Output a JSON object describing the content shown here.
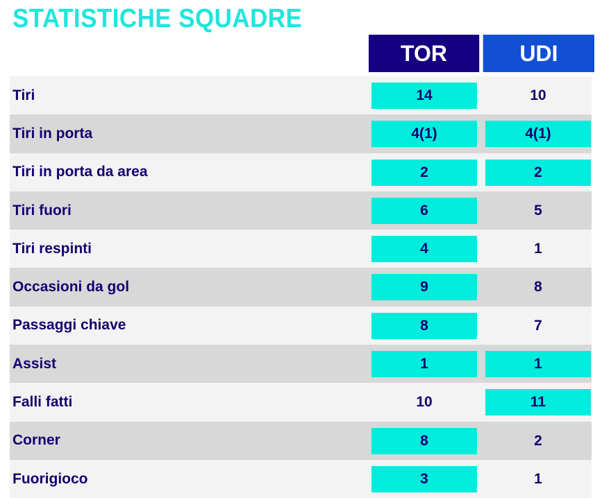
{
  "title": "STATISTICHE SQUADRE",
  "teams": [
    "TOR",
    "UDI"
  ],
  "colors": {
    "accent": "#00ecdc",
    "tor": "#140080",
    "udi": "#1150d4",
    "text": "#14006e"
  },
  "rows": [
    {
      "label": "Tiri",
      "tor": "14",
      "udi": "10",
      "hi": [
        true,
        false
      ]
    },
    {
      "label": "Tiri in porta",
      "tor": "4(1)",
      "udi": "4(1)",
      "hi": [
        true,
        true
      ]
    },
    {
      "label": "Tiri in porta da area",
      "tor": "2",
      "udi": "2",
      "hi": [
        true,
        true
      ]
    },
    {
      "label": "Tiri fuori",
      "tor": "6",
      "udi": "5",
      "hi": [
        true,
        false
      ]
    },
    {
      "label": "Tiri respinti",
      "tor": "4",
      "udi": "1",
      "hi": [
        true,
        false
      ]
    },
    {
      "label": "Occasioni da gol",
      "tor": "9",
      "udi": "8",
      "hi": [
        true,
        false
      ]
    },
    {
      "label": "Passaggi chiave",
      "tor": "8",
      "udi": "7",
      "hi": [
        true,
        false
      ]
    },
    {
      "label": "Assist",
      "tor": "1",
      "udi": "1",
      "hi": [
        true,
        true
      ]
    },
    {
      "label": "Falli fatti",
      "tor": "10",
      "udi": "11",
      "hi": [
        false,
        true
      ]
    },
    {
      "label": "Corner",
      "tor": "8",
      "udi": "2",
      "hi": [
        true,
        false
      ]
    },
    {
      "label": "Fuorigioco",
      "tor": "3",
      "udi": "1",
      "hi": [
        true,
        false
      ]
    }
  ]
}
